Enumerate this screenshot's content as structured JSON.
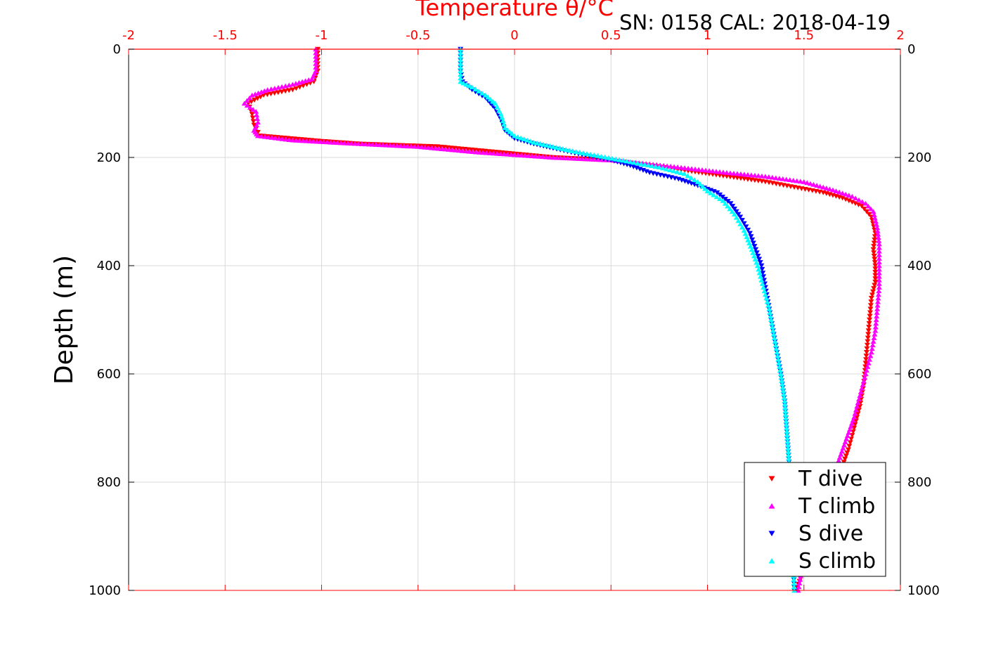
{
  "colors": {
    "background": "#ffffff",
    "axis_top": "#ff0000",
    "axis_other": "#000000",
    "grid": "#d9d9d9",
    "t_dive": "#ff0000",
    "t_climb": "#ff00ff",
    "s_dive": "#0000ff",
    "s_climb": "#00ffff"
  },
  "header": {
    "serial_cal": "SN: 0158  CAL: 2018-04-19"
  },
  "chart_data": {
    "type": "scatter",
    "title": "",
    "xlabel": "Temperature θ/°C",
    "ylabel": "Depth (m)",
    "xlim": [
      -2,
      2
    ],
    "ylim": [
      0,
      1000
    ],
    "y_reversed": true,
    "x_axis_position": "top",
    "x_ticks": [
      "-2",
      "-1.5",
      "-1",
      "-0.5",
      "0",
      "0.5",
      "1",
      "1.5",
      "2"
    ],
    "y_ticks": [
      "0",
      "200",
      "400",
      "600",
      "800",
      "1000"
    ],
    "grid": true,
    "legend_position": "bottom-right",
    "series": [
      {
        "name": "T dive",
        "marker": "triangle-down",
        "color": "#ff0000",
        "points": [
          [
            -1.02,
            0
          ],
          [
            -1.02,
            20
          ],
          [
            -1.02,
            40
          ],
          [
            -1.04,
            60
          ],
          [
            -1.15,
            75
          ],
          [
            -1.3,
            85
          ],
          [
            -1.38,
            100
          ],
          [
            -1.36,
            120
          ],
          [
            -1.35,
            140
          ],
          [
            -1.32,
            160
          ],
          [
            -1.0,
            170
          ],
          [
            -0.8,
            175
          ],
          [
            -0.4,
            180
          ],
          [
            -0.1,
            190
          ],
          [
            0.2,
            200
          ],
          [
            0.5,
            205
          ],
          [
            0.7,
            215
          ],
          [
            0.9,
            225
          ],
          [
            1.1,
            235
          ],
          [
            1.3,
            245
          ],
          [
            1.45,
            255
          ],
          [
            1.6,
            265
          ],
          [
            1.7,
            275
          ],
          [
            1.8,
            290
          ],
          [
            1.85,
            310
          ],
          [
            1.87,
            340
          ],
          [
            1.86,
            370
          ],
          [
            1.87,
            400
          ],
          [
            1.87,
            430
          ],
          [
            1.85,
            460
          ],
          [
            1.84,
            500
          ],
          [
            1.83,
            540
          ],
          [
            1.82,
            580
          ],
          [
            1.81,
            620
          ],
          [
            1.79,
            660
          ],
          [
            1.76,
            700
          ],
          [
            1.73,
            740
          ],
          [
            1.69,
            780
          ],
          [
            1.62,
            840
          ],
          [
            1.55,
            900
          ],
          [
            1.5,
            960
          ],
          [
            1.46,
            1000
          ]
        ]
      },
      {
        "name": "T climb",
        "marker": "triangle-up",
        "color": "#ff00ff",
        "points": [
          [
            -1.03,
            0
          ],
          [
            -1.03,
            20
          ],
          [
            -1.03,
            40
          ],
          [
            -1.05,
            55
          ],
          [
            -1.15,
            65
          ],
          [
            -1.28,
            75
          ],
          [
            -1.36,
            85
          ],
          [
            -1.4,
            100
          ],
          [
            -1.34,
            115
          ],
          [
            -1.33,
            135
          ],
          [
            -1.35,
            150
          ],
          [
            -1.33,
            160
          ],
          [
            -1.15,
            168
          ],
          [
            -0.9,
            173
          ],
          [
            -0.5,
            180
          ],
          [
            -0.2,
            190
          ],
          [
            0.2,
            200
          ],
          [
            0.5,
            205
          ],
          [
            0.7,
            212
          ],
          [
            0.9,
            220
          ],
          [
            1.1,
            228
          ],
          [
            1.3,
            235
          ],
          [
            1.5,
            245
          ],
          [
            1.65,
            260
          ],
          [
            1.75,
            272
          ],
          [
            1.82,
            285
          ],
          [
            1.86,
            300
          ],
          [
            1.88,
            330
          ],
          [
            1.89,
            360
          ],
          [
            1.89,
            400
          ],
          [
            1.89,
            440
          ],
          [
            1.88,
            480
          ],
          [
            1.87,
            520
          ],
          [
            1.85,
            560
          ],
          [
            1.82,
            600
          ],
          [
            1.79,
            640
          ],
          [
            1.76,
            680
          ],
          [
            1.72,
            720
          ],
          [
            1.68,
            760
          ],
          [
            1.62,
            820
          ],
          [
            1.55,
            880
          ],
          [
            1.5,
            940
          ],
          [
            1.47,
            1000
          ]
        ]
      },
      {
        "name": "S dive",
        "marker": "triangle-down",
        "color": "#0000ff",
        "points": [
          [
            -0.28,
            0
          ],
          [
            -0.28,
            20
          ],
          [
            -0.28,
            40
          ],
          [
            -0.27,
            60
          ],
          [
            -0.22,
            75
          ],
          [
            -0.15,
            90
          ],
          [
            -0.1,
            110
          ],
          [
            -0.07,
            130
          ],
          [
            -0.05,
            150
          ],
          [
            0.0,
            165
          ],
          [
            0.1,
            175
          ],
          [
            0.2,
            183
          ],
          [
            0.35,
            195
          ],
          [
            0.5,
            205
          ],
          [
            0.6,
            215
          ],
          [
            0.7,
            228
          ],
          [
            0.85,
            240
          ],
          [
            0.95,
            252
          ],
          [
            1.05,
            265
          ],
          [
            1.12,
            285
          ],
          [
            1.17,
            310
          ],
          [
            1.22,
            340
          ],
          [
            1.25,
            370
          ],
          [
            1.28,
            400
          ],
          [
            1.3,
            440
          ],
          [
            1.32,
            480
          ],
          [
            1.34,
            520
          ],
          [
            1.36,
            560
          ],
          [
            1.38,
            600
          ],
          [
            1.4,
            650
          ],
          [
            1.41,
            700
          ],
          [
            1.42,
            750
          ],
          [
            1.43,
            800
          ],
          [
            1.44,
            860
          ],
          [
            1.44,
            920
          ],
          [
            1.45,
            1000
          ]
        ]
      },
      {
        "name": "S climb",
        "marker": "triangle-up",
        "color": "#00ffff",
        "points": [
          [
            -0.28,
            0
          ],
          [
            -0.28,
            20
          ],
          [
            -0.28,
            40
          ],
          [
            -0.28,
            60
          ],
          [
            -0.22,
            70
          ],
          [
            -0.15,
            85
          ],
          [
            -0.1,
            100
          ],
          [
            -0.07,
            120
          ],
          [
            -0.05,
            145
          ],
          [
            0.0,
            160
          ],
          [
            0.1,
            172
          ],
          [
            0.2,
            180
          ],
          [
            0.3,
            188
          ],
          [
            0.45,
            198
          ],
          [
            0.6,
            208
          ],
          [
            0.75,
            218
          ],
          [
            0.88,
            230
          ],
          [
            0.95,
            245
          ],
          [
            1.0,
            262
          ],
          [
            1.08,
            280
          ],
          [
            1.14,
            305
          ],
          [
            1.19,
            335
          ],
          [
            1.23,
            370
          ],
          [
            1.26,
            400
          ],
          [
            1.29,
            440
          ],
          [
            1.32,
            480
          ],
          [
            1.34,
            520
          ],
          [
            1.36,
            560
          ],
          [
            1.38,
            600
          ],
          [
            1.4,
            650
          ],
          [
            1.41,
            700
          ],
          [
            1.42,
            750
          ],
          [
            1.43,
            800
          ],
          [
            1.44,
            860
          ],
          [
            1.44,
            920
          ],
          [
            1.45,
            1000
          ]
        ]
      }
    ]
  }
}
